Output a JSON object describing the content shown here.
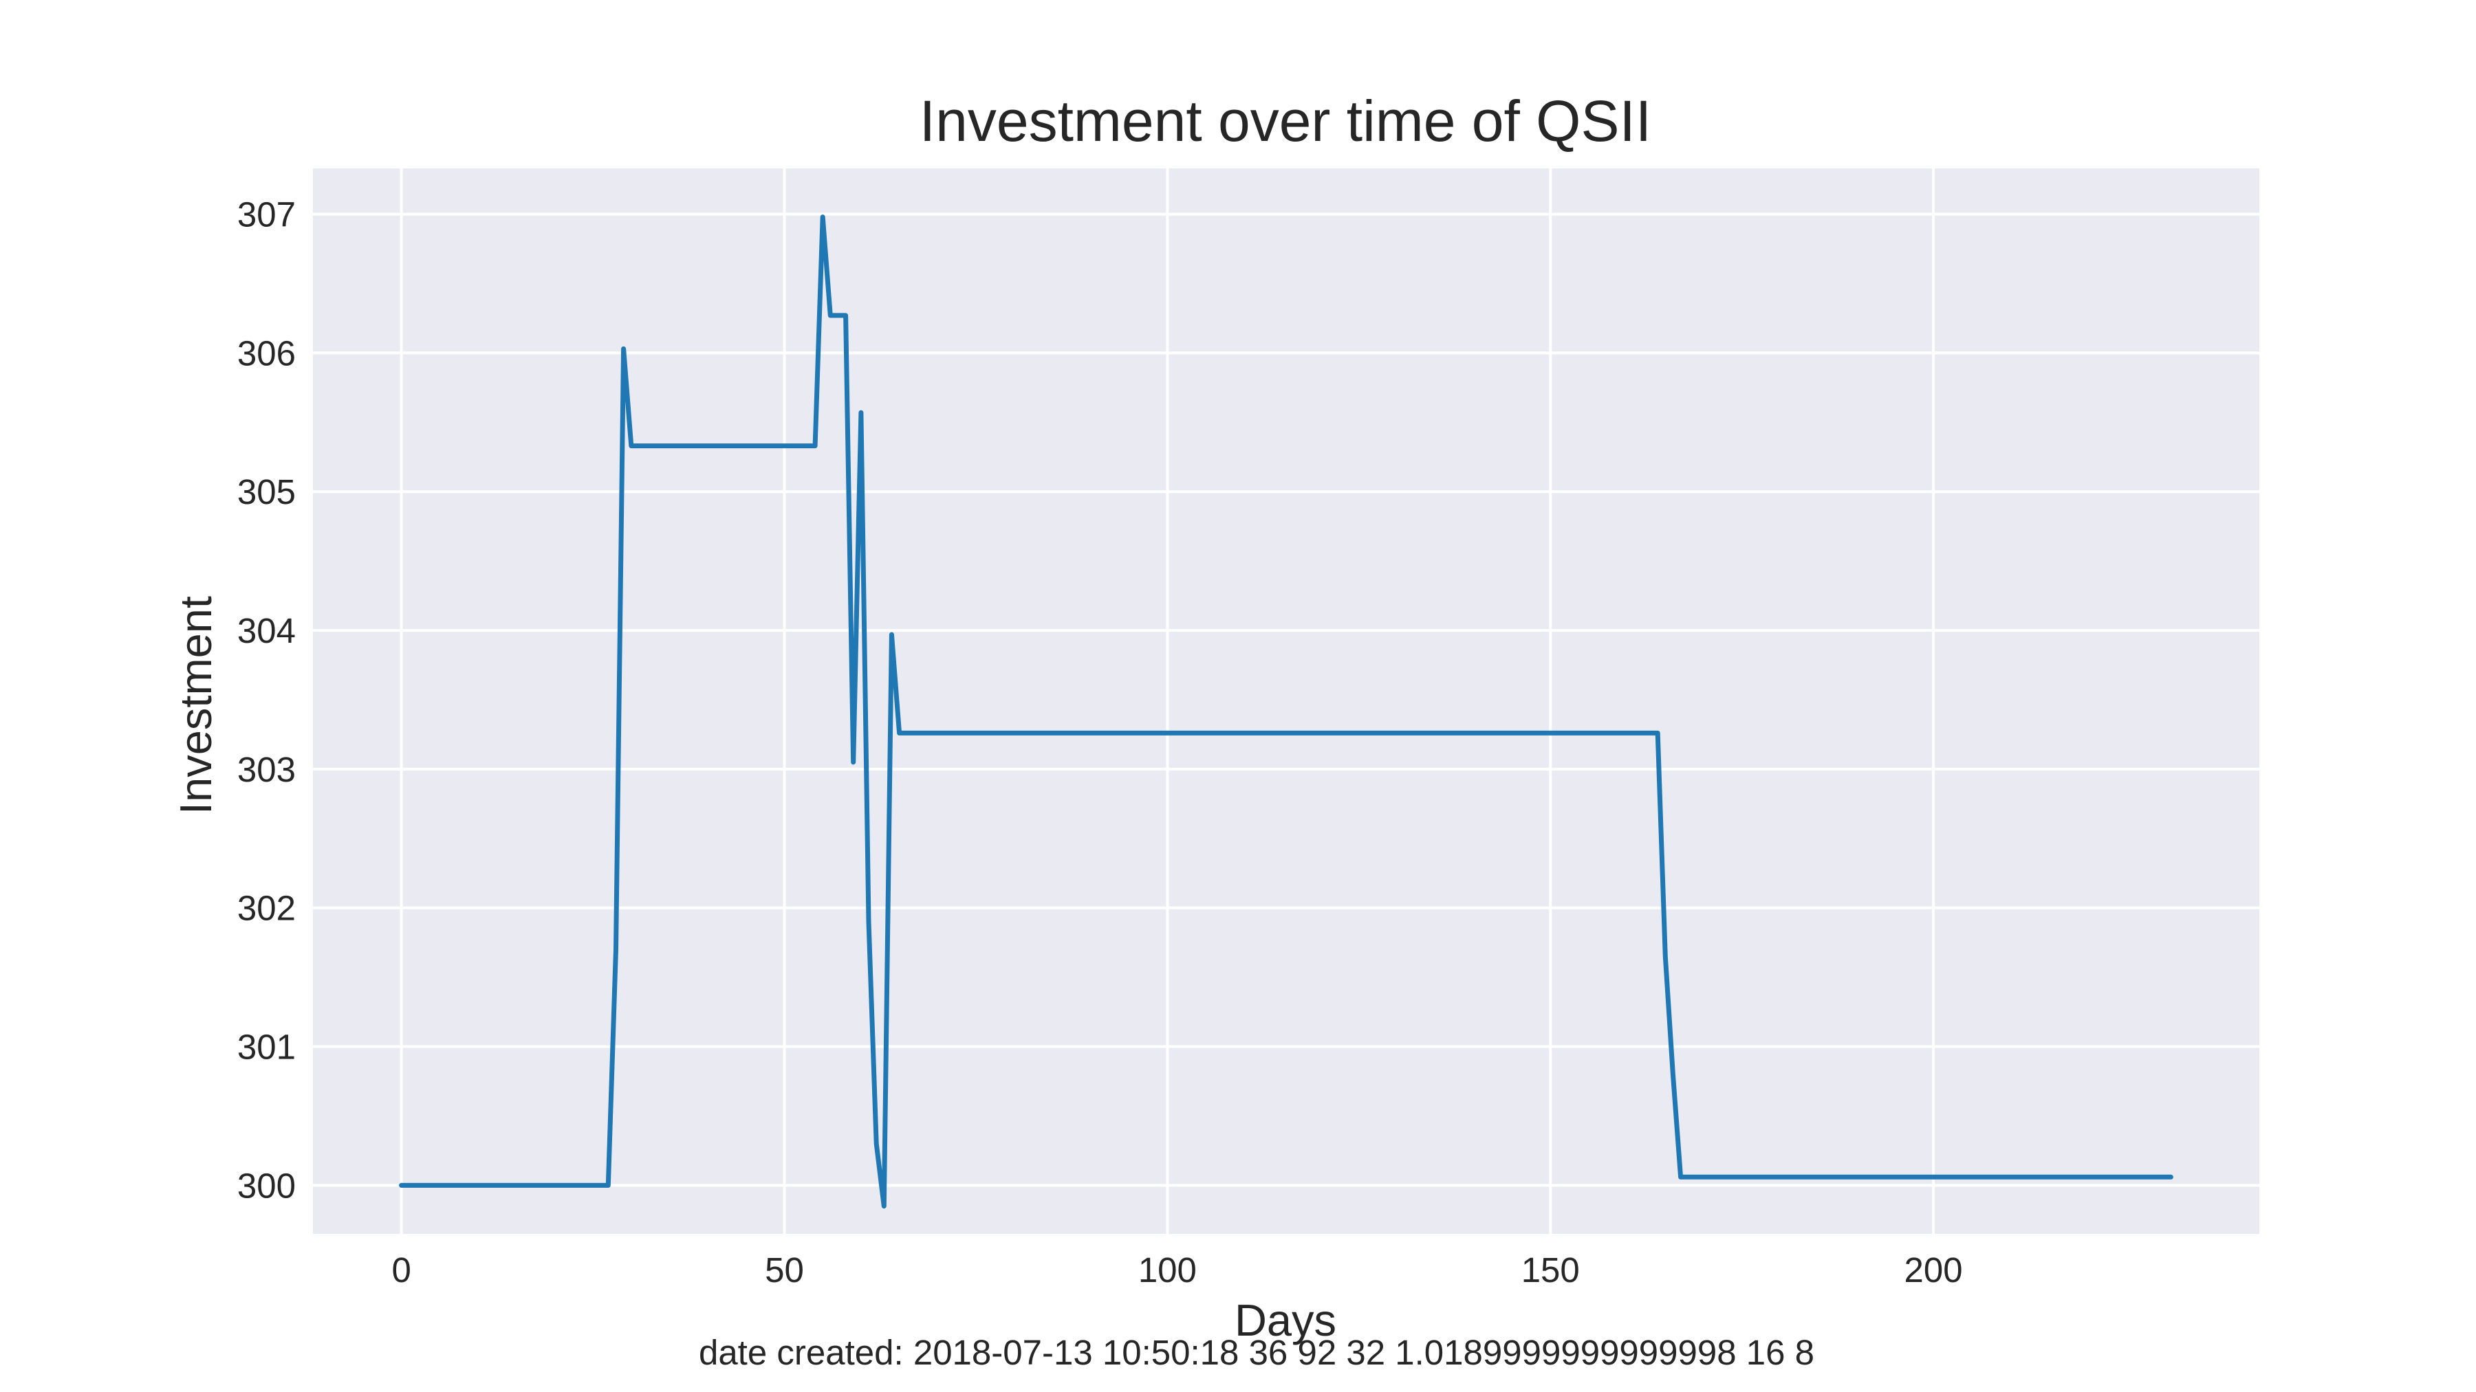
{
  "chart_data": {
    "type": "line",
    "title": "Investment over time of QSII",
    "xlabel": "Days",
    "ylabel": "Investment",
    "footer": "date created: 2018-07-13 10:50:18 36 92 32 1.0189999999999998 16 8",
    "xlim": [
      -11.55,
      242.55
    ],
    "ylim": [
      299.65,
      307.33
    ],
    "xticks": [
      0,
      50,
      100,
      150,
      200
    ],
    "yticks": [
      300,
      301,
      302,
      303,
      304,
      305,
      306,
      307
    ],
    "grid": true,
    "legend": "none",
    "colors": {
      "line": "#1f77b4",
      "plot_bg": "#eaeaf2",
      "grid": "#ffffff",
      "text": "#262626"
    },
    "series": [
      {
        "x": [
          0,
          27,
          28,
          29,
          30,
          54,
          55,
          56,
          58,
          59,
          60,
          61,
          62,
          63,
          64,
          65,
          164,
          165,
          166,
          167,
          231
        ],
        "y": [
          300.0,
          300.0,
          301.7,
          306.03,
          305.33,
          305.33,
          306.98,
          306.27,
          306.27,
          303.05,
          305.57,
          301.9,
          300.3,
          299.85,
          303.97,
          303.26,
          303.26,
          301.65,
          300.8,
          300.06,
          300.06
        ]
      }
    ]
  }
}
